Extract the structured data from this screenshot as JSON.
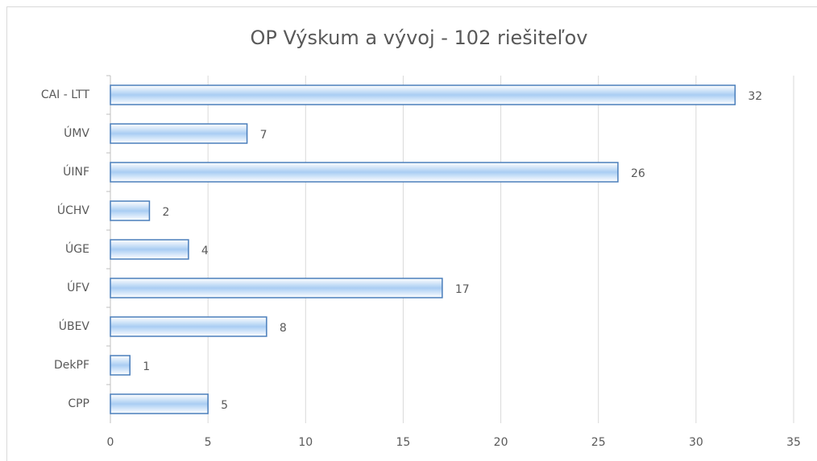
{
  "chart_data": {
    "type": "bar",
    "orientation": "horizontal",
    "title": "OP Výskum a vývoj - 102 riešiteľov",
    "categories": [
      "CAI - LTT",
      "ÚMV",
      "ÚINF",
      "ÚCHV",
      "ÚGE",
      "ÚFV",
      "ÚBEV",
      "DekPF",
      "CPP"
    ],
    "values": [
      32,
      7,
      26,
      2,
      4,
      17,
      8,
      1,
      5
    ],
    "color": "#a9cdf3",
    "xlim": [
      0,
      35
    ],
    "xticks": [
      0,
      5,
      10,
      15,
      20,
      25,
      30,
      35
    ],
    "grid": true
  }
}
